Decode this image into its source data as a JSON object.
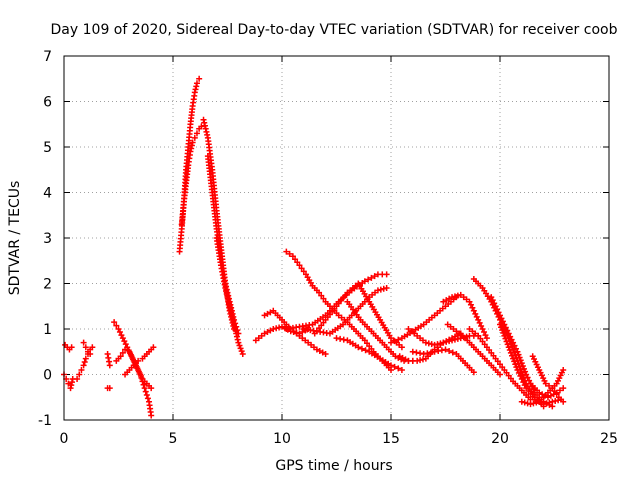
{
  "chart_data": {
    "type": "scatter",
    "title": "Day 109 of 2020, Sidereal Day-to-day VTEC variation (SDTVAR) for receiver coob",
    "xlabel": "GPS time / hours",
    "ylabel": "SDTVAR / TECUs",
    "xlim": [
      0,
      25
    ],
    "ylim": [
      -1,
      7
    ],
    "x_ticks": [
      "0",
      "5",
      "10",
      "15",
      "20",
      "25"
    ],
    "y_ticks": [
      "-1",
      "0",
      "1",
      "2",
      "3",
      "4",
      "5",
      "6",
      "7"
    ],
    "grid": true,
    "marker": "+",
    "color": "#ff0000",
    "series": [
      {
        "name": "s1",
        "x": [
          0.0,
          0.1,
          0.2,
          0.3,
          0.4
        ],
        "y": [
          0.0,
          -0.1,
          -0.2,
          -0.3,
          -0.1
        ]
      },
      {
        "name": "s2",
        "x": [
          0.05,
          0.15,
          0.25,
          0.35
        ],
        "y": [
          0.65,
          0.6,
          0.55,
          0.6
        ]
      },
      {
        "name": "s3",
        "x": [
          0.6,
          0.7,
          0.8,
          0.9,
          1.0,
          1.1,
          1.2,
          1.3
        ],
        "y": [
          -0.1,
          0.0,
          0.1,
          0.2,
          0.35,
          0.45,
          0.55,
          0.6
        ]
      },
      {
        "name": "s4",
        "x": [
          0.9,
          1.0,
          1.1,
          1.2
        ],
        "y": [
          0.7,
          0.6,
          0.5,
          0.45
        ]
      },
      {
        "name": "s5",
        "x": [
          2.0,
          2.1
        ],
        "y": [
          -0.3,
          -0.3
        ]
      },
      {
        "name": "s6",
        "x": [
          2.0,
          2.1
        ],
        "y": [
          0.45,
          0.2
        ]
      },
      {
        "name": "s7",
        "x": [
          2.3,
          2.5,
          2.7,
          2.9,
          3.1,
          3.3,
          3.5,
          3.7,
          3.9,
          4.0
        ],
        "y": [
          1.15,
          1.0,
          0.8,
          0.6,
          0.4,
          0.2,
          0.0,
          -0.3,
          -0.6,
          -0.9
        ]
      },
      {
        "name": "s8",
        "x": [
          2.4,
          2.6,
          2.8,
          3.0,
          3.2,
          3.4,
          3.6,
          3.8,
          4.0
        ],
        "y": [
          0.3,
          0.4,
          0.55,
          0.5,
          0.3,
          0.1,
          -0.1,
          -0.2,
          -0.3
        ]
      },
      {
        "name": "s9",
        "x": [
          2.8,
          3.0,
          3.2,
          3.4,
          3.6,
          3.8,
          4.0,
          4.1
        ],
        "y": [
          0.0,
          0.1,
          0.2,
          0.3,
          0.35,
          0.45,
          0.55,
          0.6
        ]
      },
      {
        "name": "s10",
        "x": [
          5.3,
          5.4,
          5.5,
          5.6,
          5.7,
          5.8,
          5.9,
          6.0,
          6.1,
          6.2
        ],
        "y": [
          2.7,
          3.2,
          3.8,
          4.5,
          5.0,
          5.5,
          5.9,
          6.2,
          6.4,
          6.5
        ]
      },
      {
        "name": "s11",
        "x": [
          5.4,
          5.5,
          5.6,
          5.7,
          5.8,
          5.9,
          6.0,
          6.1,
          6.2,
          6.3
        ],
        "y": [
          3.3,
          3.8,
          4.2,
          4.6,
          4.9,
          5.1,
          5.2,
          5.3,
          5.4,
          5.45
        ]
      },
      {
        "name": "s12",
        "x": [
          6.4,
          6.6,
          6.8,
          7.0,
          7.2,
          7.4,
          7.6,
          7.8
        ],
        "y": [
          5.6,
          5.2,
          4.5,
          3.6,
          2.8,
          2.0,
          1.4,
          1.0
        ]
      },
      {
        "name": "s13",
        "x": [
          6.6,
          6.8,
          7.0,
          7.2,
          7.4,
          7.6,
          7.8,
          8.0
        ],
        "y": [
          4.8,
          4.0,
          3.2,
          2.6,
          2.0,
          1.6,
          1.2,
          0.9
        ]
      },
      {
        "name": "s14",
        "x": [
          7.0,
          7.2,
          7.4,
          7.6,
          7.8,
          8.0,
          8.2
        ],
        "y": [
          3.0,
          2.4,
          1.9,
          1.5,
          1.1,
          0.7,
          0.45
        ]
      },
      {
        "name": "s15",
        "x": [
          8.8,
          9.2,
          9.6,
          10.0,
          10.4,
          10.8,
          11.2
        ],
        "y": [
          0.75,
          0.9,
          1.0,
          1.05,
          0.95,
          0.9,
          1.0
        ]
      },
      {
        "name": "s16",
        "x": [
          9.2,
          9.6,
          10.0,
          10.4,
          10.8,
          11.2,
          11.6,
          12.0
        ],
        "y": [
          1.3,
          1.4,
          1.2,
          1.0,
          0.85,
          0.7,
          0.55,
          0.45
        ]
      },
      {
        "name": "s17",
        "x": [
          10.2,
          10.5,
          10.8,
          11.1,
          11.4,
          11.7,
          12.0,
          12.3,
          12.6,
          13.0,
          13.4,
          13.8,
          14.2,
          14.6,
          15.0
        ],
        "y": [
          2.7,
          2.6,
          2.4,
          2.2,
          1.95,
          1.8,
          1.6,
          1.45,
          1.3,
          1.15,
          0.95,
          0.75,
          0.5,
          0.3,
          0.1
        ]
      },
      {
        "name": "s18",
        "x": [
          10.2,
          10.8,
          11.4,
          12.0,
          12.6,
          13.2,
          13.8,
          14.4,
          14.8
        ],
        "y": [
          1.0,
          1.05,
          1.1,
          1.3,
          1.6,
          1.85,
          2.05,
          2.2,
          2.2
        ]
      },
      {
        "name": "s19",
        "x": [
          11.0,
          11.6,
          12.2,
          12.8,
          13.2,
          13.6,
          14.0,
          14.4,
          14.8
        ],
        "y": [
          1.0,
          0.95,
          0.9,
          1.1,
          1.3,
          1.5,
          1.7,
          1.85,
          1.9
        ]
      },
      {
        "name": "s20",
        "x": [
          11.5,
          12.0,
          12.5,
          13.0,
          13.5,
          14.0,
          14.5,
          15.0,
          15.5
        ],
        "y": [
          0.9,
          1.2,
          1.5,
          1.8,
          2.0,
          1.6,
          1.2,
          0.8,
          0.6
        ]
      },
      {
        "name": "s21",
        "x": [
          12.5,
          13.0,
          13.5,
          14.0,
          14.5,
          15.0,
          15.5
        ],
        "y": [
          0.8,
          0.75,
          0.6,
          0.5,
          0.35,
          0.2,
          0.1
        ]
      },
      {
        "name": "s22",
        "x": [
          13.0,
          13.6,
          14.2,
          14.8,
          15.2,
          15.6,
          16.0
        ],
        "y": [
          1.6,
          1.2,
          0.9,
          0.6,
          0.4,
          0.3,
          0.3
        ]
      },
      {
        "name": "s23",
        "x": [
          15.0,
          15.5,
          16.0,
          16.5,
          17.0,
          17.5,
          18.0
        ],
        "y": [
          0.7,
          0.8,
          0.95,
          1.1,
          1.3,
          1.5,
          1.7
        ]
      },
      {
        "name": "s24",
        "x": [
          15.4,
          15.8,
          16.2,
          16.6,
          17.0,
          17.4,
          17.8,
          18.2
        ],
        "y": [
          0.4,
          0.3,
          0.3,
          0.35,
          0.55,
          0.7,
          0.8,
          0.9
        ]
      },
      {
        "name": "s25",
        "x": [
          15.8,
          16.2,
          16.6,
          17.0,
          17.4,
          17.8,
          18.2,
          18.6,
          19.0
        ],
        "y": [
          1.0,
          0.85,
          0.7,
          0.65,
          0.7,
          0.75,
          0.8,
          0.85,
          0.85
        ]
      },
      {
        "name": "s26",
        "x": [
          16.0,
          16.5,
          17.0,
          17.5,
          18.0,
          18.5,
          18.8
        ],
        "y": [
          0.5,
          0.45,
          0.5,
          0.55,
          0.45,
          0.2,
          0.05
        ]
      },
      {
        "name": "s27",
        "x": [
          17.4,
          17.8,
          18.2,
          18.6,
          19.0,
          19.4
        ],
        "y": [
          1.6,
          1.7,
          1.75,
          1.6,
          1.2,
          0.8
        ]
      },
      {
        "name": "s28",
        "x": [
          17.6,
          18.0,
          18.4,
          18.8,
          19.2,
          19.6,
          20.0
        ],
        "y": [
          1.1,
          0.95,
          0.8,
          0.6,
          0.4,
          0.2,
          0.0
        ]
      },
      {
        "name": "s29",
        "x": [
          18.6,
          19.0,
          19.4,
          19.8,
          20.2,
          20.6,
          21.0,
          21.4
        ],
        "y": [
          1.0,
          0.85,
          0.6,
          0.35,
          0.1,
          -0.15,
          -0.35,
          -0.55
        ]
      },
      {
        "name": "s30",
        "x": [
          18.8,
          19.2,
          19.6,
          20.0,
          20.4,
          20.8,
          21.2,
          21.6,
          22.0
        ],
        "y": [
          2.1,
          1.9,
          1.6,
          1.2,
          0.8,
          0.3,
          -0.2,
          -0.5,
          -0.7
        ]
      },
      {
        "name": "s31",
        "x": [
          19.6,
          20.0,
          20.4,
          20.8,
          21.2,
          21.6,
          22.0,
          22.4
        ],
        "y": [
          1.7,
          1.3,
          0.9,
          0.5,
          0.0,
          -0.4,
          -0.6,
          -0.7
        ]
      },
      {
        "name": "s32",
        "x": [
          20.0,
          20.4,
          20.8,
          21.2,
          21.6,
          22.0,
          22.4,
          22.8
        ],
        "y": [
          1.1,
          0.6,
          0.1,
          -0.3,
          -0.55,
          -0.65,
          -0.6,
          -0.55
        ]
      },
      {
        "name": "s33",
        "x": [
          21.0,
          21.4,
          21.8,
          22.2,
          22.6,
          22.9
        ],
        "y": [
          -0.6,
          -0.65,
          -0.6,
          -0.4,
          -0.2,
          0.1
        ]
      },
      {
        "name": "s34",
        "x": [
          21.5,
          21.8,
          22.1,
          22.4,
          22.7,
          22.9
        ],
        "y": [
          0.4,
          0.1,
          -0.2,
          -0.3,
          -0.5,
          -0.6
        ]
      },
      {
        "name": "s35",
        "x": [
          21.4,
          21.8,
          22.2,
          22.6,
          22.9
        ],
        "y": [
          -0.2,
          -0.4,
          -0.5,
          -0.4,
          -0.3
        ]
      }
    ]
  }
}
